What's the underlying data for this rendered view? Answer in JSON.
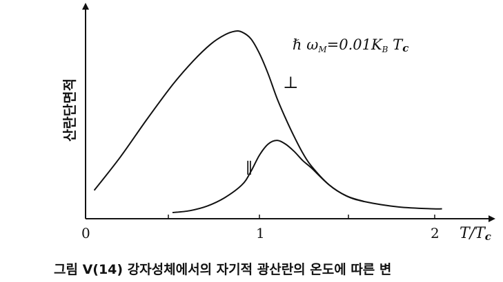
{
  "chart_data": {
    "type": "line",
    "ylabel": "산란단면적",
    "xlabel": "T/Tc",
    "x_ticks": [
      "0",
      "1",
      "2"
    ],
    "xlim": [
      0,
      2.3
    ],
    "ylim": [
      0,
      1.0
    ],
    "annotation": "ℏ ω_M = 0.01 K_B T_c",
    "series": [
      {
        "name": "⊥",
        "x": [
          0.05,
          0.2,
          0.35,
          0.5,
          0.62,
          0.72,
          0.8,
          0.86,
          0.9,
          0.95,
          1.0,
          1.05,
          1.1,
          1.15,
          1.2,
          1.25,
          1.3,
          1.4,
          1.5,
          1.6,
          1.8,
          2.0,
          2.05
        ],
        "y": [
          0.12,
          0.3,
          0.5,
          0.69,
          0.82,
          0.91,
          0.96,
          0.98,
          0.975,
          0.94,
          0.86,
          0.75,
          0.62,
          0.51,
          0.41,
          0.32,
          0.25,
          0.15,
          0.09,
          0.06,
          0.03,
          0.02,
          0.02
        ]
      },
      {
        "name": "∥",
        "x": [
          0.5,
          0.6,
          0.7,
          0.8,
          0.9,
          0.95,
          1.0,
          1.05,
          1.1,
          1.15,
          1.2,
          1.25,
          1.3,
          1.4,
          1.5,
          1.6
        ],
        "y": [
          0.0,
          0.01,
          0.035,
          0.08,
          0.15,
          0.22,
          0.31,
          0.37,
          0.39,
          0.37,
          0.33,
          0.28,
          0.24,
          0.15,
          0.09,
          0.06
        ]
      }
    ]
  },
  "caption": "그림 V(14)  강자성체에서의 자기적 광산란의 온도에 따른 변"
}
